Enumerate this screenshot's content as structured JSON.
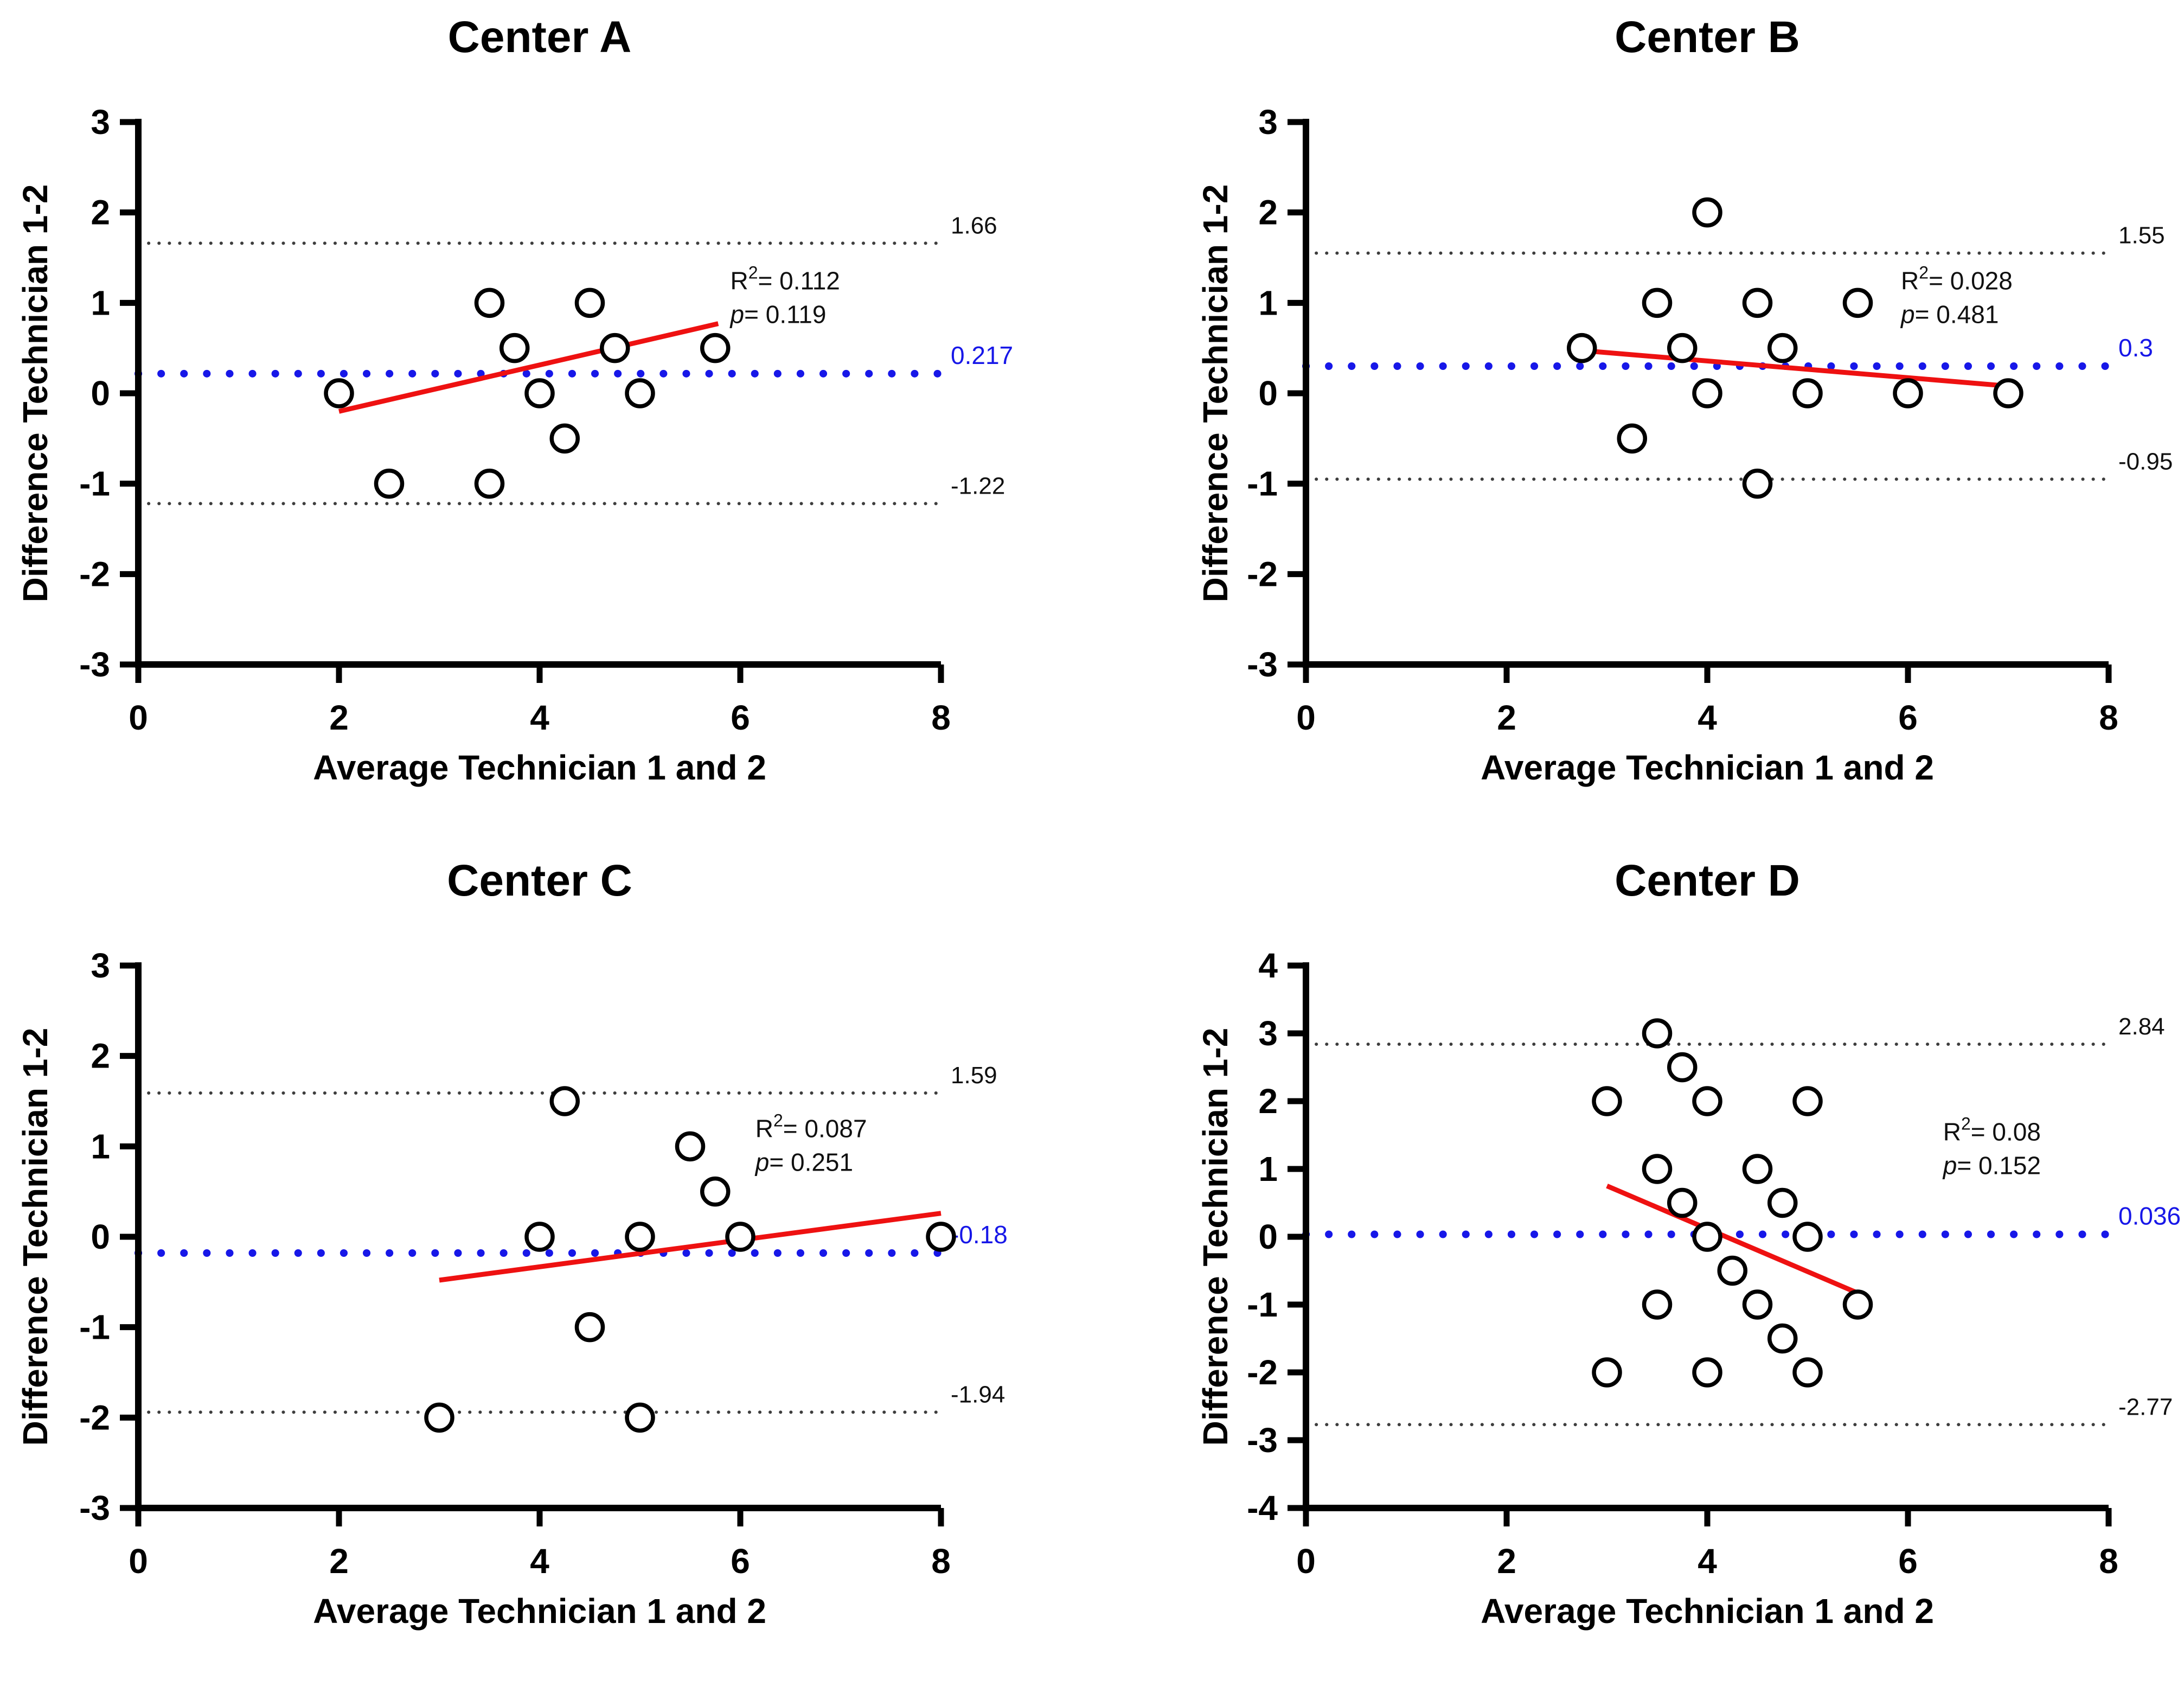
{
  "figure": {
    "background": "#ffffff"
  },
  "colors": {
    "mean_line": "#1717e8",
    "limit_line": "#3d3d3d",
    "limit_label": "#101010",
    "regression": "#ee1111",
    "point_stroke": "#000000",
    "axis": "#000000",
    "annotation": "#101010"
  },
  "chart_data": [
    {
      "id": "center-a",
      "type": "scatter",
      "title": "Center A",
      "xlabel": "Average Technician 1 and 2",
      "ylabel": "Difference Technician 1-2",
      "xlim": [
        0,
        8
      ],
      "ylim": [
        -3,
        3
      ],
      "xticks": [
        0,
        2,
        4,
        6,
        8
      ],
      "yticks": [
        3,
        2,
        1,
        0,
        -1,
        -2,
        -3
      ],
      "points": [
        [
          2,
          0
        ],
        [
          2.5,
          -1
        ],
        [
          3.5,
          1
        ],
        [
          3.5,
          -1
        ],
        [
          3.75,
          0.5
        ],
        [
          4,
          0
        ],
        [
          4.25,
          -0.5
        ],
        [
          4.5,
          1
        ],
        [
          4.75,
          0.5
        ],
        [
          5,
          0
        ],
        [
          5.75,
          0.5
        ]
      ],
      "mean_line": {
        "value": 0.217,
        "label": "0.217"
      },
      "upper_limit": {
        "value": 1.66,
        "label": "1.66"
      },
      "lower_limit": {
        "value": -1.22,
        "label": "-1.22"
      },
      "regression": {
        "x1": 2.0,
        "y1": -0.2,
        "x2": 5.78,
        "y2": 0.77
      },
      "annotation": {
        "r2_base": "R",
        "r2_sup": "2",
        "r2_rest": "= 0.112",
        "p_name": "p",
        "p_rest": "= 0.119",
        "x": 5.9,
        "y": 1.15
      }
    },
    {
      "id": "center-b",
      "type": "scatter",
      "title": "Center B",
      "xlabel": "Average Technician 1 and 2",
      "ylabel": "Difference Technician 1-2",
      "xlim": [
        0,
        8
      ],
      "ylim": [
        -3,
        3
      ],
      "xticks": [
        0,
        2,
        4,
        6,
        8
      ],
      "yticks": [
        3,
        2,
        1,
        0,
        -1,
        -2,
        -3
      ],
      "points": [
        [
          2.75,
          0.5
        ],
        [
          3.25,
          -0.5
        ],
        [
          3.5,
          1
        ],
        [
          3.75,
          0.5
        ],
        [
          4,
          2
        ],
        [
          4,
          0
        ],
        [
          4.5,
          1
        ],
        [
          4.5,
          -1
        ],
        [
          4.75,
          0.5
        ],
        [
          5,
          0
        ],
        [
          5.5,
          1
        ],
        [
          6,
          0
        ],
        [
          7,
          0
        ]
      ],
      "mean_line": {
        "value": 0.3,
        "label": "0.3"
      },
      "upper_limit": {
        "value": 1.55,
        "label": "1.55"
      },
      "lower_limit": {
        "value": -0.95,
        "label": "-0.95"
      },
      "regression": {
        "x1": 2.78,
        "y1": 0.47,
        "x2": 7.0,
        "y2": 0.08
      },
      "annotation": {
        "r2_base": "R",
        "r2_sup": "2",
        "r2_rest": "= 0.028",
        "p_name": "p",
        "p_rest": "= 0.481",
        "x": 5.93,
        "y": 1.15
      }
    },
    {
      "id": "center-c",
      "type": "scatter",
      "title": "Center C",
      "xlabel": "Average Technician 1 and 2",
      "ylabel": "Difference Technician 1-2",
      "xlim": [
        0,
        8
      ],
      "ylim": [
        -3,
        3
      ],
      "xticks": [
        0,
        2,
        4,
        6,
        8
      ],
      "yticks": [
        3,
        2,
        1,
        0,
        -1,
        -2,
        -3
      ],
      "points": [
        [
          3,
          -2
        ],
        [
          4,
          0
        ],
        [
          4.25,
          1.5
        ],
        [
          4.5,
          -1
        ],
        [
          5,
          0
        ],
        [
          5,
          -2
        ],
        [
          5.5,
          1
        ],
        [
          5.75,
          0.5
        ],
        [
          6,
          0
        ],
        [
          8,
          0
        ]
      ],
      "mean_line": {
        "value": -0.18,
        "label": "-0.18"
      },
      "upper_limit": {
        "value": 1.59,
        "label": "1.59"
      },
      "lower_limit": {
        "value": -1.94,
        "label": "-1.94"
      },
      "regression": {
        "x1": 3.0,
        "y1": -0.48,
        "x2": 8.0,
        "y2": 0.26
      },
      "annotation": {
        "r2_base": "R",
        "r2_sup": "2",
        "r2_rest": "= 0.087",
        "p_name": "p",
        "p_rest": "= 0.251",
        "x": 6.15,
        "y": 1.1
      }
    },
    {
      "id": "center-d",
      "type": "scatter",
      "title": "Center D",
      "xlabel": "Average Technician 1 and 2",
      "ylabel": "Difference Technician 1-2",
      "xlim": [
        0,
        8
      ],
      "ylim": [
        -4,
        4
      ],
      "xticks": [
        0,
        2,
        4,
        6,
        8
      ],
      "yticks": [
        4,
        3,
        2,
        1,
        0,
        -1,
        -2,
        -3,
        -4
      ],
      "points": [
        [
          3,
          2
        ],
        [
          3,
          -2
        ],
        [
          3.5,
          3
        ],
        [
          3.5,
          1
        ],
        [
          3.5,
          -1
        ],
        [
          3.75,
          2.5
        ],
        [
          3.75,
          0.5
        ],
        [
          4,
          2
        ],
        [
          4,
          0
        ],
        [
          4,
          -2
        ],
        [
          4.25,
          -0.5
        ],
        [
          4.5,
          1
        ],
        [
          4.5,
          -1
        ],
        [
          4.75,
          0.5
        ],
        [
          4.75,
          -1.5
        ],
        [
          5,
          2
        ],
        [
          5,
          0
        ],
        [
          5,
          -2
        ],
        [
          5.5,
          -1
        ]
      ],
      "mean_line": {
        "value": 0.036,
        "label": "0.036"
      },
      "upper_limit": {
        "value": 2.84,
        "label": "2.84"
      },
      "lower_limit": {
        "value": -2.77,
        "label": "-2.77"
      },
      "regression": {
        "x1": 3.0,
        "y1": 0.75,
        "x2": 5.5,
        "y2": -0.83
      },
      "annotation": {
        "r2_base": "R",
        "r2_sup": "2",
        "r2_rest": "= 0.08",
        "p_name": "p",
        "p_rest": "= 0.152",
        "x": 6.35,
        "y": 1.42
      }
    }
  ]
}
